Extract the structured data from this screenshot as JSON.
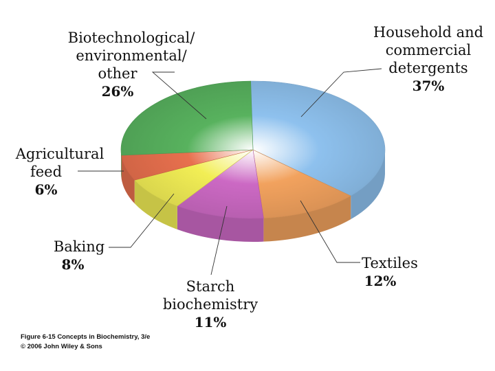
{
  "chart_data": {
    "type": "pie",
    "style": "3d",
    "slices": [
      {
        "label": "Household and commercial detergents",
        "value": 37,
        "pct_text": "37%",
        "color": "#8ec1ee"
      },
      {
        "label": "Textiles",
        "value": 12,
        "pct_text": "12%",
        "color": "#f2a25e"
      },
      {
        "label": "Starch biochemistry",
        "value": 11,
        "pct_text": "11%",
        "color": "#cc69c4"
      },
      {
        "label": "Baking",
        "value": 8,
        "pct_text": "8%",
        "color": "#f2ee55"
      },
      {
        "label": "Agricultural feed",
        "value": 6,
        "pct_text": "6%",
        "color": "#e8704e"
      },
      {
        "label": "Biotechnological/ environmental/ other",
        "value": 26,
        "pct_text": "26%",
        "color": "#58b25e"
      }
    ]
  },
  "labels": {
    "detergents": {
      "line1": "Household and",
      "line2": "commercial",
      "line3": "detergents",
      "pct": "37%"
    },
    "biotech": {
      "line1": "Biotechnological/",
      "line2": "environmental/",
      "line3": "other",
      "pct": "26%"
    },
    "agri": {
      "line1": "Agricultural",
      "line2": "feed",
      "pct": "6%"
    },
    "baking": {
      "line1": "Baking",
      "pct": "8%"
    },
    "textiles": {
      "line1": "Textiles",
      "pct": "12%"
    },
    "starch": {
      "line1": "Starch",
      "line2": "biochemistry",
      "pct": "11%"
    }
  },
  "caption": {
    "line1": "Figure 6-15  Concepts in Biochemistry, 3/e",
    "line2": "© 2006 John Wiley & Sons"
  }
}
